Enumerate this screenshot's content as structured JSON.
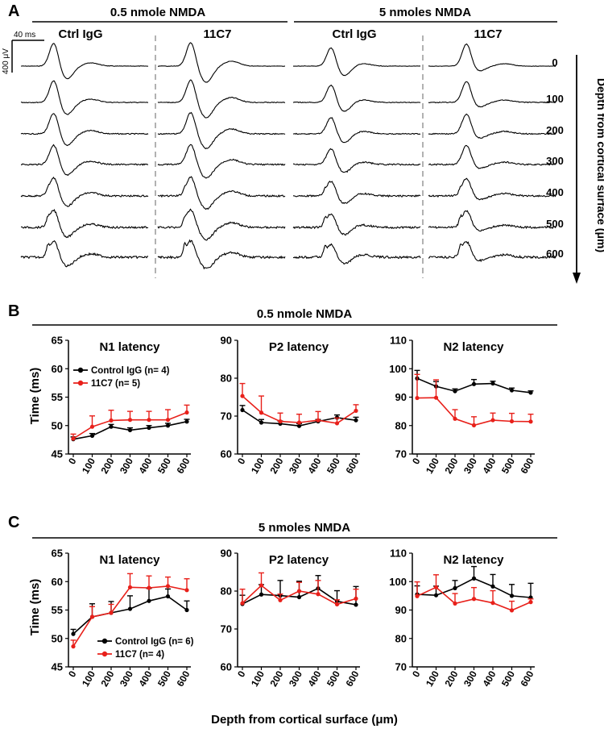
{
  "panel_a": {
    "label": "A",
    "group_titles": [
      "0.5 nmole NMDA",
      "5 nmoles NMDA"
    ],
    "column_titles": [
      "Ctrl IgG",
      "11C7",
      "Ctrl IgG",
      "11C7"
    ],
    "depth_labels": [
      "0",
      "100",
      "200",
      "300",
      "400",
      "500",
      "600"
    ],
    "depth_axis_label": "Depth from cortical surface (μm)",
    "scale_time": "40 ms",
    "scale_voltage": "400 μV"
  },
  "panel_b": {
    "label": "B",
    "title": "0.5 nmole NMDA"
  },
  "panel_c": {
    "label": "C",
    "title": "5 nmoles NMDA"
  },
  "common": {
    "ylabel": "Time (ms)",
    "xlabel": "Depth from cortical surface (μm)"
  },
  "chart_data": [
    {
      "type": "line",
      "panel": "B",
      "title": "N1 latency",
      "categories": [
        "0",
        "100",
        "200",
        "300",
        "400",
        "500",
        "600"
      ],
      "ylim": [
        45,
        65
      ],
      "yticks": [
        "45",
        "50",
        "55",
        "60",
        "65"
      ],
      "legend": "top-left",
      "series": [
        {
          "name": "Control IgG (n= 4)",
          "color": "#000000",
          "values": [
            47.6,
            48.2,
            49.8,
            49.2,
            49.6,
            50.0,
            50.7
          ],
          "errors": [
            0.4,
            0.4,
            0.4,
            0.4,
            0.4,
            0.4,
            0.4
          ]
        },
        {
          "name": "11C7 (n= 5)",
          "color": "#e8201a",
          "values": [
            47.7,
            49.8,
            50.9,
            51.0,
            51.0,
            51.0,
            52.3
          ],
          "errors": [
            0.8,
            1.9,
            1.8,
            1.5,
            1.5,
            1.8,
            1.3
          ]
        }
      ]
    },
    {
      "type": "line",
      "panel": "B",
      "title": "P2 latency",
      "categories": [
        "0",
        "100",
        "200",
        "300",
        "400",
        "500",
        "600"
      ],
      "ylim": [
        60,
        90
      ],
      "yticks": [
        "60",
        "70",
        "80",
        "90"
      ],
      "series": [
        {
          "name": "Control IgG",
          "color": "#000000",
          "values": [
            71.6,
            68.3,
            68.0,
            67.4,
            68.6,
            69.6,
            68.9
          ],
          "errors": [
            1.2,
            0.8,
            0.7,
            0.6,
            0.5,
            0.7,
            0.8
          ]
        },
        {
          "name": "11C7",
          "color": "#e8201a",
          "values": [
            75.3,
            70.9,
            68.6,
            68.3,
            68.9,
            68.1,
            71.4
          ],
          "errors": [
            3.3,
            4.4,
            2.2,
            2.2,
            2.3,
            1.4,
            1.6
          ]
        }
      ]
    },
    {
      "type": "line",
      "panel": "B",
      "title": "N2 latency",
      "categories": [
        "0",
        "100",
        "200",
        "300",
        "400",
        "500",
        "600"
      ],
      "ylim": [
        70,
        110
      ],
      "yticks": [
        "70",
        "80",
        "90",
        "100",
        "110"
      ],
      "series": [
        {
          "name": "Control IgG",
          "color": "#000000",
          "values": [
            96.6,
            93.8,
            92.1,
            94.6,
            94.8,
            92.4,
            91.6
          ],
          "errors": [
            2.8,
            1.7,
            0.8,
            1.6,
            0.8,
            0.8,
            0.6
          ]
        },
        {
          "name": "11C7",
          "color": "#e8201a",
          "values": [
            89.7,
            89.8,
            82.4,
            80.1,
            81.9,
            81.5,
            81.4
          ],
          "errors": [
            8.3,
            6.3,
            3.2,
            3.0,
            2.5,
            2.8,
            2.6
          ]
        }
      ]
    },
    {
      "type": "line",
      "panel": "C",
      "title": "N1 latency",
      "categories": [
        "0",
        "100",
        "200",
        "300",
        "400",
        "500",
        "600"
      ],
      "ylim": [
        45,
        65
      ],
      "yticks": [
        "45",
        "50",
        "55",
        "60",
        "65"
      ],
      "legend": "bottom-right",
      "series": [
        {
          "name": "Control IgG (n= 6)",
          "color": "#000000",
          "values": [
            50.8,
            53.8,
            54.5,
            55.2,
            56.6,
            57.4,
            55.0
          ],
          "errors": [
            0.8,
            2.3,
            2.0,
            2.3,
            2.2,
            1.3,
            1.6
          ]
        },
        {
          "name": "11C7 (n= 4)",
          "color": "#e8201a",
          "values": [
            48.6,
            53.8,
            54.5,
            59.0,
            58.9,
            59.2,
            58.5
          ],
          "errors": [
            1.1,
            1.8,
            1.5,
            2.4,
            2.1,
            1.6,
            2.0
          ]
        }
      ]
    },
    {
      "type": "line",
      "panel": "C",
      "title": "P2 latency",
      "categories": [
        "0",
        "100",
        "200",
        "300",
        "400",
        "500",
        "600"
      ],
      "ylim": [
        60,
        90
      ],
      "yticks": [
        "60",
        "70",
        "80",
        "90"
      ],
      "series": [
        {
          "name": "Control IgG",
          "color": "#000000",
          "values": [
            76.6,
            79.1,
            78.8,
            78.4,
            80.7,
            77.3,
            76.4
          ],
          "errors": [
            2.3,
            2.6,
            4.0,
            4.2,
            3.4,
            2.8,
            4.8
          ]
        },
        {
          "name": "11C7",
          "color": "#e8201a",
          "values": [
            76.8,
            81.5,
            77.6,
            80.0,
            79.2,
            76.5,
            78.0
          ],
          "errors": [
            3.7,
            3.3,
            1.6,
            2.3,
            3.6,
            1.2,
            2.5
          ]
        }
      ]
    },
    {
      "type": "line",
      "panel": "C",
      "title": "N2 latency",
      "categories": [
        "0",
        "100",
        "200",
        "300",
        "400",
        "500",
        "600"
      ],
      "ylim": [
        70,
        110
      ],
      "yticks": [
        "70",
        "80",
        "90",
        "100",
        "110"
      ],
      "series": [
        {
          "name": "Control IgG",
          "color": "#000000",
          "values": [
            95.5,
            95.2,
            97.7,
            101.1,
            98.3,
            95.0,
            94.4
          ],
          "errors": [
            3.0,
            3.2,
            2.7,
            4.2,
            4.2,
            4.0,
            5.0
          ]
        },
        {
          "name": "11C7",
          "color": "#e8201a",
          "values": [
            94.9,
            98.0,
            92.3,
            93.9,
            92.5,
            89.9,
            92.8
          ],
          "errors": [
            5.0,
            4.4,
            3.5,
            4.0,
            4.3,
            3.2,
            1.1
          ]
        }
      ]
    }
  ]
}
